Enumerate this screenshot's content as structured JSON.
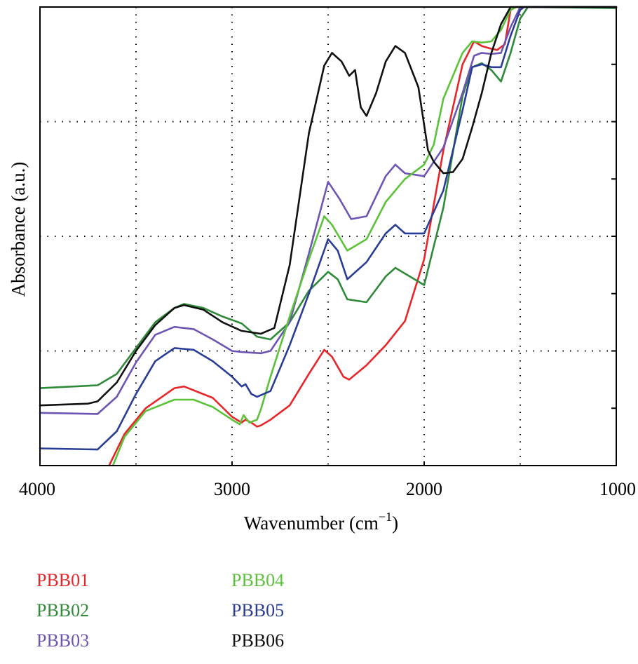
{
  "chart_data": {
    "type": "line",
    "title": "",
    "xlabel": "Wavenumber (cm",
    "xlabel_sup": "−1",
    "xlabel_close": ")",
    "ylabel": "Absorbance (a.u.)",
    "xlim": [
      4000,
      1000
    ],
    "x_reversed": true,
    "ylim": [
      0,
      8
    ],
    "x_ticks": [
      4000,
      3000,
      2000,
      1000
    ],
    "x_minor_grid": [
      3500,
      2500,
      1500
    ],
    "y_ticks": [
      1,
      2,
      3,
      4,
      5,
      6,
      7
    ],
    "y_tick_labels_shown": false,
    "y_grid": [
      2,
      4,
      6
    ],
    "grid": "dotted",
    "legend_position": "below",
    "series": [
      {
        "name": "PBB01",
        "color": "#e8262a",
        "points": [
          [
            3640,
            0.0
          ],
          [
            3560,
            0.55
          ],
          [
            3450,
            1.0
          ],
          [
            3300,
            1.35
          ],
          [
            3250,
            1.38
          ],
          [
            3100,
            1.18
          ],
          [
            3000,
            0.85
          ],
          [
            2950,
            0.75
          ],
          [
            2930,
            0.8
          ],
          [
            2900,
            0.75
          ],
          [
            2870,
            0.68
          ],
          [
            2850,
            0.7
          ],
          [
            2800,
            0.8
          ],
          [
            2700,
            1.05
          ],
          [
            2600,
            1.6
          ],
          [
            2520,
            2.02
          ],
          [
            2480,
            1.9
          ],
          [
            2420,
            1.55
          ],
          [
            2390,
            1.5
          ],
          [
            2300,
            1.75
          ],
          [
            2200,
            2.1
          ],
          [
            2100,
            2.52
          ],
          [
            2000,
            3.6
          ],
          [
            1900,
            5.5
          ],
          [
            1800,
            7.0
          ],
          [
            1740,
            7.4
          ],
          [
            1700,
            7.32
          ],
          [
            1660,
            7.28
          ],
          [
            1620,
            7.25
          ],
          [
            1580,
            7.35
          ],
          [
            1550,
            7.95
          ],
          [
            1520,
            8.0
          ],
          [
            1000,
            8.0
          ]
        ]
      },
      {
        "name": "PBB02",
        "color": "#2f8a3a",
        "points": [
          [
            4000,
            1.35
          ],
          [
            3700,
            1.4
          ],
          [
            3600,
            1.6
          ],
          [
            3500,
            2.05
          ],
          [
            3400,
            2.5
          ],
          [
            3300,
            2.75
          ],
          [
            3250,
            2.82
          ],
          [
            3150,
            2.75
          ],
          [
            3050,
            2.6
          ],
          [
            2950,
            2.48
          ],
          [
            2870,
            2.25
          ],
          [
            2800,
            2.2
          ],
          [
            2700,
            2.5
          ],
          [
            2600,
            3.05
          ],
          [
            2500,
            3.38
          ],
          [
            2450,
            3.25
          ],
          [
            2400,
            2.9
          ],
          [
            2300,
            2.85
          ],
          [
            2200,
            3.3
          ],
          [
            2150,
            3.45
          ],
          [
            2100,
            3.35
          ],
          [
            2000,
            3.15
          ],
          [
            1900,
            4.5
          ],
          [
            1800,
            6.45
          ],
          [
            1750,
            6.95
          ],
          [
            1700,
            7.02
          ],
          [
            1650,
            6.9
          ],
          [
            1600,
            6.7
          ],
          [
            1550,
            7.2
          ],
          [
            1500,
            7.8
          ],
          [
            1460,
            8.0
          ],
          [
            1000,
            7.98
          ]
        ]
      },
      {
        "name": "PBB03",
        "color": "#6e55b4",
        "points": [
          [
            4000,
            0.92
          ],
          [
            3700,
            0.9
          ],
          [
            3600,
            1.2
          ],
          [
            3500,
            1.8
          ],
          [
            3400,
            2.28
          ],
          [
            3300,
            2.42
          ],
          [
            3200,
            2.38
          ],
          [
            3100,
            2.2
          ],
          [
            3000,
            2.0
          ],
          [
            2950,
            1.98
          ],
          [
            2850,
            1.96
          ],
          [
            2800,
            2.0
          ],
          [
            2700,
            2.5
          ],
          [
            2600,
            3.7
          ],
          [
            2500,
            4.95
          ],
          [
            2440,
            4.65
          ],
          [
            2380,
            4.3
          ],
          [
            2300,
            4.35
          ],
          [
            2200,
            5.05
          ],
          [
            2150,
            5.25
          ],
          [
            2100,
            5.1
          ],
          [
            2000,
            5.05
          ],
          [
            1900,
            5.55
          ],
          [
            1800,
            6.5
          ],
          [
            1740,
            7.15
          ],
          [
            1700,
            7.2
          ],
          [
            1650,
            7.18
          ],
          [
            1600,
            7.2
          ],
          [
            1550,
            7.65
          ],
          [
            1500,
            8.0
          ],
          [
            1000,
            8.0
          ]
        ]
      },
      {
        "name": "PBB04",
        "color": "#5cc23a",
        "points": [
          [
            3620,
            0.0
          ],
          [
            3560,
            0.5
          ],
          [
            3450,
            0.95
          ],
          [
            3300,
            1.15
          ],
          [
            3200,
            1.15
          ],
          [
            3100,
            1.02
          ],
          [
            3000,
            0.8
          ],
          [
            2960,
            0.72
          ],
          [
            2940,
            0.88
          ],
          [
            2910,
            0.75
          ],
          [
            2870,
            0.8
          ],
          [
            2850,
            0.98
          ],
          [
            2800,
            1.55
          ],
          [
            2700,
            2.6
          ],
          [
            2600,
            3.6
          ],
          [
            2520,
            4.35
          ],
          [
            2480,
            4.2
          ],
          [
            2400,
            3.75
          ],
          [
            2300,
            3.95
          ],
          [
            2200,
            4.6
          ],
          [
            2100,
            5.0
          ],
          [
            2000,
            5.25
          ],
          [
            1950,
            5.6
          ],
          [
            1900,
            6.4
          ],
          [
            1800,
            7.2
          ],
          [
            1750,
            7.4
          ],
          [
            1700,
            7.38
          ],
          [
            1650,
            7.4
          ],
          [
            1600,
            7.6
          ],
          [
            1550,
            7.95
          ],
          [
            1520,
            8.0
          ],
          [
            1000,
            8.0
          ]
        ]
      },
      {
        "name": "PBB05",
        "color": "#2a3d96",
        "points": [
          [
            4000,
            0.3
          ],
          [
            3700,
            0.28
          ],
          [
            3600,
            0.6
          ],
          [
            3500,
            1.25
          ],
          [
            3400,
            1.82
          ],
          [
            3300,
            2.05
          ],
          [
            3200,
            2.02
          ],
          [
            3100,
            1.82
          ],
          [
            3000,
            1.55
          ],
          [
            2950,
            1.38
          ],
          [
            2930,
            1.42
          ],
          [
            2900,
            1.25
          ],
          [
            2870,
            1.2
          ],
          [
            2800,
            1.3
          ],
          [
            2700,
            2.1
          ],
          [
            2600,
            3.0
          ],
          [
            2500,
            3.95
          ],
          [
            2450,
            3.75
          ],
          [
            2400,
            3.25
          ],
          [
            2300,
            3.55
          ],
          [
            2200,
            4.05
          ],
          [
            2150,
            4.2
          ],
          [
            2100,
            4.05
          ],
          [
            2000,
            4.05
          ],
          [
            1900,
            4.8
          ],
          [
            1800,
            6.2
          ],
          [
            1750,
            6.95
          ],
          [
            1700,
            7.0
          ],
          [
            1650,
            6.95
          ],
          [
            1600,
            6.95
          ],
          [
            1550,
            7.5
          ],
          [
            1500,
            7.95
          ],
          [
            1480,
            8.0
          ],
          [
            1000,
            8.0
          ]
        ]
      },
      {
        "name": "PBB06",
        "color": "#111111",
        "points": [
          [
            4000,
            1.05
          ],
          [
            3750,
            1.08
          ],
          [
            3700,
            1.12
          ],
          [
            3600,
            1.45
          ],
          [
            3500,
            2.0
          ],
          [
            3400,
            2.45
          ],
          [
            3300,
            2.75
          ],
          [
            3250,
            2.8
          ],
          [
            3150,
            2.72
          ],
          [
            3050,
            2.5
          ],
          [
            2950,
            2.35
          ],
          [
            2850,
            2.3
          ],
          [
            2780,
            2.4
          ],
          [
            2700,
            3.5
          ],
          [
            2600,
            5.8
          ],
          [
            2520,
            6.98
          ],
          [
            2480,
            7.2
          ],
          [
            2430,
            7.05
          ],
          [
            2390,
            6.8
          ],
          [
            2360,
            6.9
          ],
          [
            2330,
            6.25
          ],
          [
            2300,
            6.1
          ],
          [
            2250,
            6.5
          ],
          [
            2200,
            7.05
          ],
          [
            2150,
            7.32
          ],
          [
            2100,
            7.2
          ],
          [
            2030,
            6.6
          ],
          [
            1980,
            5.5
          ],
          [
            1950,
            5.3
          ],
          [
            1900,
            5.1
          ],
          [
            1850,
            5.12
          ],
          [
            1800,
            5.35
          ],
          [
            1750,
            5.9
          ],
          [
            1700,
            6.5
          ],
          [
            1650,
            7.2
          ],
          [
            1600,
            7.7
          ],
          [
            1550,
            8.0
          ],
          [
            1000,
            8.0
          ]
        ]
      }
    ]
  }
}
